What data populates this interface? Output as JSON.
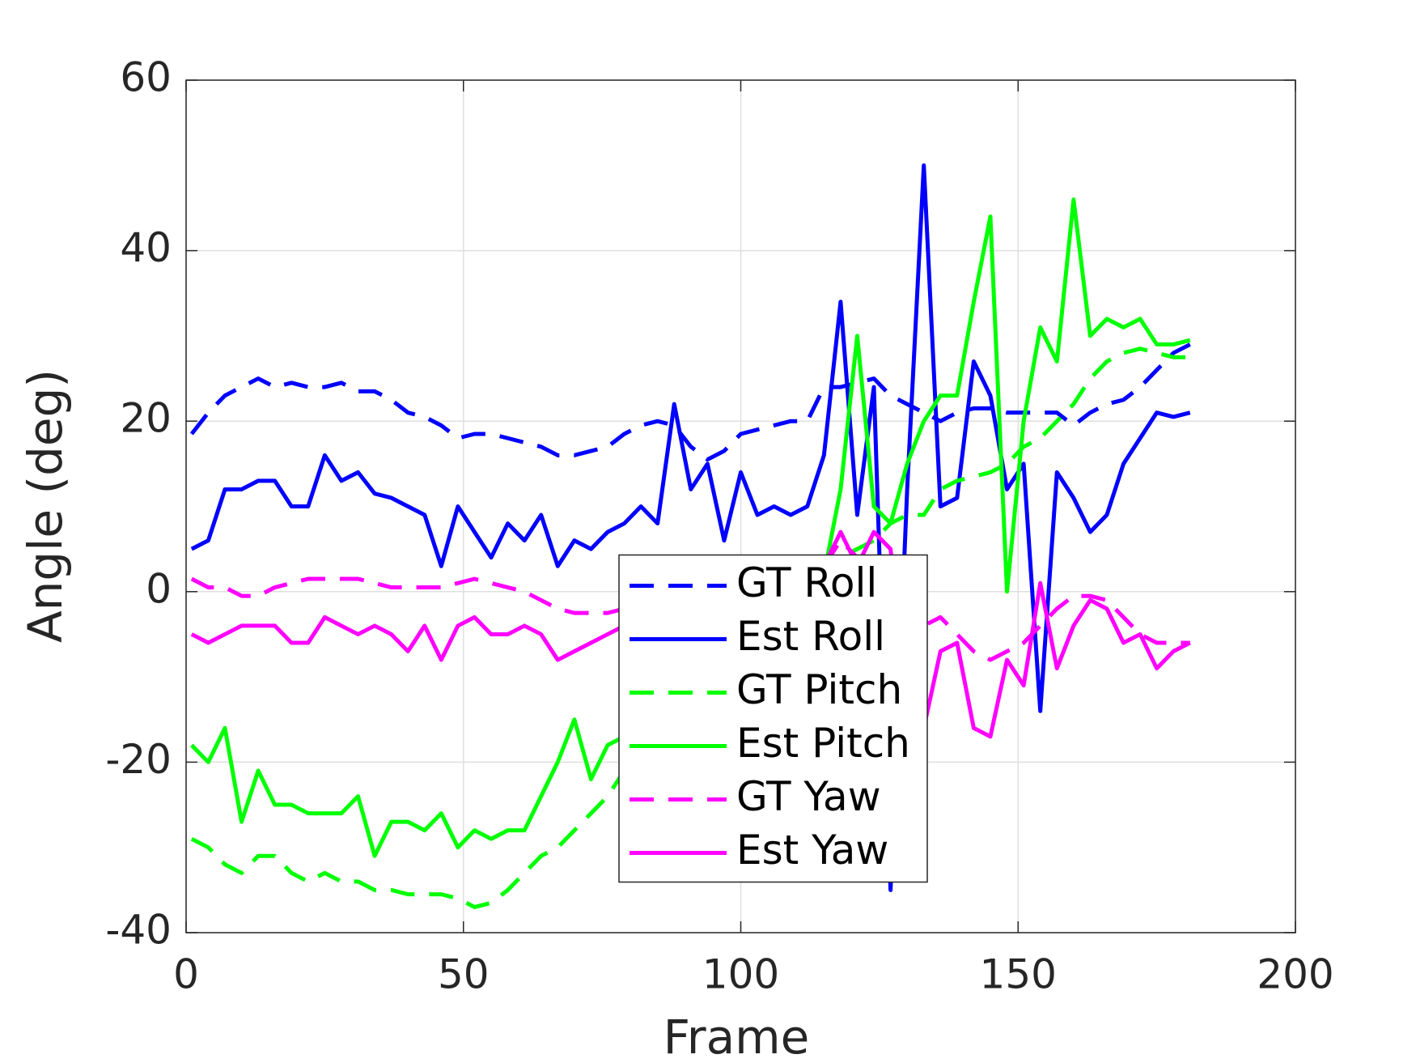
{
  "chart_data": {
    "type": "line",
    "xlabel": "Frame",
    "ylabel": "Angle (deg)",
    "xlim": [
      0,
      200
    ],
    "xticks": [
      0,
      50,
      100,
      150,
      200
    ],
    "ylim": [
      -40,
      60
    ],
    "yticks": [
      -40,
      -20,
      0,
      20,
      40,
      60
    ],
    "grid": true,
    "legend": "center",
    "x": [
      1,
      4,
      7,
      10,
      13,
      16,
      19,
      22,
      25,
      28,
      31,
      34,
      37,
      40,
      43,
      46,
      49,
      52,
      55,
      58,
      61,
      64,
      67,
      70,
      73,
      76,
      79,
      82,
      85,
      88,
      91,
      94,
      97,
      100,
      103,
      106,
      109,
      112,
      115,
      118,
      121,
      124,
      127,
      130,
      133,
      136,
      139,
      142,
      145,
      148,
      151,
      154,
      157,
      160,
      163,
      166,
      169,
      172,
      175,
      178,
      181
    ],
    "series": [
      {
        "name": "GT Roll",
        "color": "#0000ff",
        "style": "dashed",
        "values": [
          18.5,
          21,
          23,
          24,
          25,
          24,
          24.5,
          24,
          24,
          24.5,
          23.5,
          23.5,
          22.5,
          21,
          20.5,
          19.5,
          18,
          18.5,
          18.5,
          18,
          17.5,
          17,
          16,
          16,
          16.5,
          17,
          18.5,
          19.5,
          20,
          19.5,
          17,
          15.5,
          16.5,
          18.5,
          19,
          19.5,
          20,
          20,
          24,
          24,
          24.5,
          25,
          23,
          22,
          21,
          20,
          21,
          21.5,
          21.5,
          21,
          21,
          21,
          21,
          19.5,
          21,
          22,
          22.5,
          24,
          26,
          28,
          29
        ]
      },
      {
        "name": "Est Roll",
        "color": "#0000ff",
        "style": "solid",
        "values": [
          5,
          6,
          12,
          12,
          13,
          13,
          10,
          10,
          16,
          13,
          14,
          11.5,
          11,
          10,
          9,
          3,
          10,
          7,
          4,
          8,
          6,
          9,
          3,
          6,
          5,
          7,
          8,
          10,
          8,
          22,
          12,
          15,
          6,
          14,
          9,
          10,
          9,
          10,
          16,
          34,
          9,
          24,
          -35,
          12,
          50,
          10,
          11,
          27,
          23,
          12,
          15,
          -14,
          14,
          11,
          7,
          9,
          15,
          18,
          21,
          20.5,
          21
        ]
      },
      {
        "name": "GT Pitch",
        "color": "#00ff00",
        "style": "dashed",
        "values": [
          -29,
          -30,
          -32,
          -33,
          -31,
          -31,
          -33,
          -34,
          -33,
          -34,
          -34,
          -35,
          -35,
          -35.5,
          -35.5,
          -35.5,
          -36,
          -37,
          -36.5,
          -35,
          -33,
          -31,
          -30,
          -28,
          -26,
          -24,
          -21,
          -18,
          -15,
          -12,
          -9,
          -6,
          -4,
          -2,
          0,
          1,
          2,
          3,
          4,
          4,
          5,
          6,
          8,
          9,
          9,
          12,
          13,
          13.5,
          14,
          15,
          17,
          18,
          20,
          22,
          25,
          27,
          28,
          28.5,
          28,
          27.5,
          27.5
        ]
      },
      {
        "name": "Est Pitch",
        "color": "#00ff00",
        "style": "solid",
        "values": [
          -18,
          -20,
          -16,
          -27,
          -21,
          -25,
          -25,
          -26,
          -26,
          -26,
          -24,
          -31,
          -27,
          -27,
          -28,
          -26,
          -30,
          -28,
          -29,
          -28,
          -28,
          -24,
          -20,
          -15,
          -22,
          -18,
          -17,
          -15,
          -12,
          -10,
          -8,
          -6,
          -4,
          -3,
          -1,
          0,
          2,
          4,
          2,
          12,
          30,
          10,
          8,
          15,
          20,
          23,
          23,
          34,
          44,
          0,
          20,
          31,
          27,
          46,
          30,
          32,
          31,
          32,
          29,
          29,
          29.5
        ]
      },
      {
        "name": "GT Yaw",
        "color": "#ff00ff",
        "style": "dashed",
        "values": [
          1.5,
          0.5,
          0.5,
          -0.5,
          -0.5,
          0.5,
          1,
          1.5,
          1.5,
          1.5,
          1.5,
          1,
          0.5,
          0.5,
          0.5,
          0.5,
          1,
          1.5,
          1,
          0.5,
          0,
          -1,
          -2,
          -2.5,
          -2.5,
          -2.5,
          -2,
          -1,
          -1,
          -1,
          -1,
          -1,
          -1,
          -0.5,
          -0.5,
          0,
          0.5,
          1,
          3,
          6,
          4,
          3,
          0,
          -2,
          -4,
          -3,
          -5,
          -7,
          -8,
          -7,
          -6,
          -4,
          -2,
          -0.5,
          -0.5,
          -1,
          -3,
          -5,
          -6,
          -6,
          -6
        ]
      },
      {
        "name": "Est Yaw",
        "color": "#ff00ff",
        "style": "solid",
        "values": [
          -5,
          -6,
          -5,
          -4,
          -4,
          -4,
          -6,
          -6,
          -3,
          -4,
          -5,
          -4,
          -5,
          -7,
          -4,
          -8,
          -4,
          -3,
          -5,
          -5,
          -4,
          -5,
          -8,
          -7,
          -6,
          -5,
          -4,
          -4,
          -4,
          -3,
          -4,
          -4,
          -4,
          -3,
          -3,
          -2,
          -1,
          0,
          3,
          7,
          3,
          7,
          5,
          -12,
          -16,
          -7,
          -6,
          -16,
          -17,
          -8,
          -11,
          1,
          -9,
          -4,
          -1,
          -2,
          -6,
          -5,
          -9,
          -7,
          -6
        ]
      }
    ]
  }
}
